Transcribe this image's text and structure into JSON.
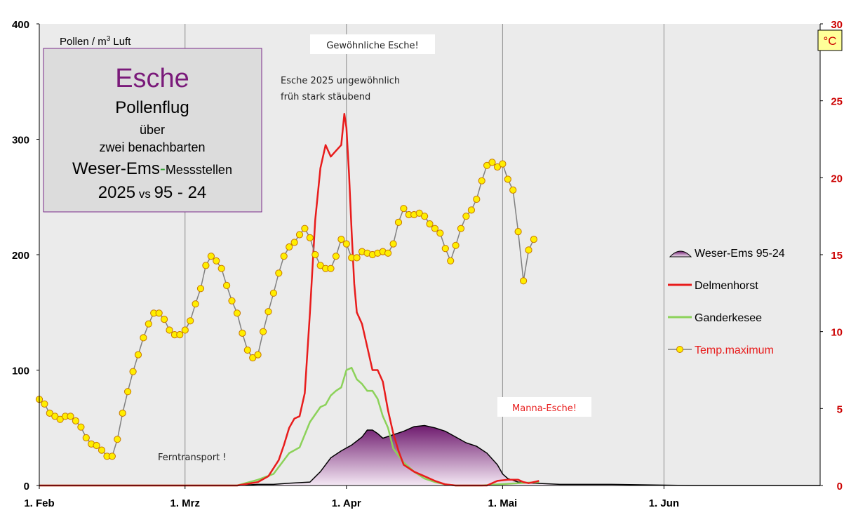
{
  "chart_data": {
    "type": "line",
    "title_box": {
      "line1": "Esche",
      "line2": "Pollenflug",
      "line3": "über",
      "line4": "zwei benachbarten",
      "line5a": "Weser-Ems",
      "line5b": "-",
      "line5c": "Messstellen",
      "line6a": "2025",
      "line6b": " vs ",
      "line6c": "95 - 24"
    },
    "ylabel_left": "Pollen / m³ Luft",
    "ylabel_right": "°C",
    "ylim_left": [
      0,
      400
    ],
    "ylim_right": [
      0,
      30
    ],
    "yticks_left": [
      "0",
      "100",
      "200",
      "300",
      "400"
    ],
    "yticks_right": [
      "0",
      "5",
      "10",
      "15",
      "20",
      "25",
      "30"
    ],
    "xticks": [
      "1. Feb",
      "1. Mrz",
      "1. Apr",
      "1. Mai",
      "1. Jun"
    ],
    "xtick_days": [
      0,
      28,
      59,
      89,
      120
    ],
    "x_max_day": 150,
    "grid": "vertical",
    "legend_position": "right",
    "annotations": {
      "gewoehnliche": "Gewöhnliche Esche!",
      "ungewoehnlich1": "Esche 2025 ungewöhnlich",
      "ungewoehnlich2": "früh stark stäubend",
      "manna": "Manna-Esche!",
      "ferntransport": "Ferntransport  !"
    },
    "colors": {
      "plot_bg": "#ebebeb",
      "delmenhorst": "#e81c1c",
      "ganderkesee": "#8cd25a",
      "weser_ems_top": "#6e1a6e",
      "weser_ems_bottom": "#f4e8f4",
      "temp_marker": "#ffee00",
      "temp_line": "#808080",
      "right_axis": "#cc0000",
      "title_esche": "#7a1a7a",
      "title_box_border": "#7a2a8a",
      "title_box_fill": "#dcdcdc"
    },
    "series": [
      {
        "name": "Weser-Ems 95-24",
        "type": "area",
        "axis": "left",
        "points": [
          [
            0,
            0
          ],
          [
            30,
            0
          ],
          [
            38,
            0
          ],
          [
            42,
            1
          ],
          [
            45,
            1
          ],
          [
            48,
            2
          ],
          [
            52,
            3
          ],
          [
            54,
            12
          ],
          [
            56,
            24
          ],
          [
            58,
            30
          ],
          [
            60,
            35
          ],
          [
            62,
            42
          ],
          [
            63,
            48
          ],
          [
            64,
            48
          ],
          [
            65,
            45
          ],
          [
            66,
            41
          ],
          [
            68,
            44
          ],
          [
            70,
            47
          ],
          [
            72,
            51
          ],
          [
            74,
            52
          ],
          [
            76,
            50
          ],
          [
            78,
            47
          ],
          [
            80,
            42
          ],
          [
            82,
            37
          ],
          [
            84,
            34
          ],
          [
            86,
            28
          ],
          [
            88,
            18
          ],
          [
            89,
            10
          ],
          [
            90,
            6
          ],
          [
            92,
            3
          ],
          [
            95,
            2
          ],
          [
            100,
            1
          ],
          [
            110,
            1
          ],
          [
            125,
            0
          ],
          [
            150,
            0
          ]
        ]
      },
      {
        "name": "Delmenhorst",
        "type": "line",
        "axis": "left",
        "points": [
          [
            0,
            0
          ],
          [
            38,
            0
          ],
          [
            42,
            3
          ],
          [
            44,
            8
          ],
          [
            46,
            22
          ],
          [
            47,
            35
          ],
          [
            48,
            50
          ],
          [
            49,
            58
          ],
          [
            50,
            60
          ],
          [
            51,
            80
          ],
          [
            52,
            150
          ],
          [
            53,
            230
          ],
          [
            54,
            275
          ],
          [
            55,
            295
          ],
          [
            56,
            285
          ],
          [
            57,
            290
          ],
          [
            58,
            295
          ],
          [
            58.6,
            322
          ],
          [
            59,
            310
          ],
          [
            59.5,
            270
          ],
          [
            60,
            220
          ],
          [
            60.5,
            175
          ],
          [
            61,
            150
          ],
          [
            62,
            140
          ],
          [
            63,
            120
          ],
          [
            64,
            100
          ],
          [
            65,
            100
          ],
          [
            66,
            90
          ],
          [
            67,
            65
          ],
          [
            68,
            45
          ],
          [
            69,
            30
          ],
          [
            70,
            18
          ],
          [
            72,
            12
          ],
          [
            74,
            8
          ],
          [
            76,
            4
          ],
          [
            78,
            1
          ],
          [
            80,
            0
          ],
          [
            86,
            0
          ],
          [
            88,
            4
          ],
          [
            90,
            5
          ],
          [
            92,
            5
          ],
          [
            93,
            3
          ],
          [
            94,
            2
          ],
          [
            95,
            3
          ],
          [
            96,
            4
          ]
        ]
      },
      {
        "name": "Ganderkesee",
        "type": "line",
        "axis": "left",
        "points": [
          [
            0,
            0
          ],
          [
            38,
            0
          ],
          [
            42,
            5
          ],
          [
            45,
            10
          ],
          [
            48,
            28
          ],
          [
            50,
            33
          ],
          [
            52,
            55
          ],
          [
            54,
            68
          ],
          [
            55,
            70
          ],
          [
            56,
            78
          ],
          [
            57,
            82
          ],
          [
            58,
            85
          ],
          [
            59,
            100
          ],
          [
            60,
            102
          ],
          [
            61,
            92
          ],
          [
            62,
            88
          ],
          [
            63,
            82
          ],
          [
            64,
            82
          ],
          [
            65,
            75
          ],
          [
            66,
            60
          ],
          [
            67,
            50
          ],
          [
            68,
            32
          ],
          [
            70,
            20
          ],
          [
            72,
            12
          ],
          [
            74,
            6
          ],
          [
            76,
            3
          ],
          [
            78,
            1
          ],
          [
            80,
            0
          ],
          [
            85,
            0
          ],
          [
            88,
            1
          ],
          [
            92,
            2
          ],
          [
            96,
            3
          ]
        ]
      },
      {
        "name": "Temp.maximum",
        "type": "line-marker",
        "axis": "right",
        "values": [
          5.6,
          5.3,
          4.7,
          4.5,
          4.3,
          4.5,
          4.5,
          4.2,
          3.8,
          3.1,
          2.7,
          2.6,
          2.3,
          1.9,
          1.9,
          3.0,
          4.7,
          6.1,
          7.4,
          8.5,
          9.6,
          10.5,
          11.2,
          11.2,
          10.8,
          10.1,
          9.8,
          9.8,
          10.1,
          10.7,
          11.8,
          12.8,
          14.3,
          14.9,
          14.6,
          14.1,
          13.0,
          12.0,
          11.2,
          9.9,
          8.8,
          8.3,
          8.5,
          10.0,
          11.3,
          12.5,
          13.8,
          14.9,
          15.5,
          15.8,
          16.3,
          16.7,
          16.1,
          15.0,
          14.3,
          14.1,
          14.1,
          14.9,
          16.0,
          15.7,
          14.8,
          14.8,
          15.2,
          15.1,
          15.0,
          15.1,
          15.2,
          15.1,
          15.7,
          17.1,
          18.0,
          17.6,
          17.6,
          17.7,
          17.5,
          17.0,
          16.7,
          16.4,
          15.4,
          14.6,
          15.6,
          16.7,
          17.5,
          17.9,
          18.6,
          19.8,
          20.8,
          21.0,
          20.7,
          20.9,
          19.9,
          19.2,
          16.5,
          13.3,
          15.3,
          16.0
        ]
      }
    ]
  }
}
